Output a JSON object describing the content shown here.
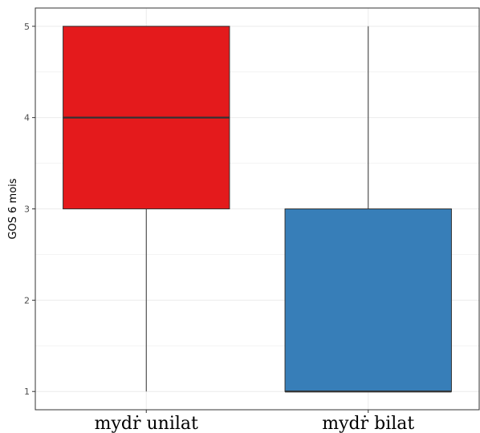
{
  "chart_data": {
    "type": "box",
    "ylabel": "GOS 6 mois",
    "xlabel": "",
    "ylim": [
      0.8,
      5.2
    ],
    "yticks": [
      1,
      2,
      3,
      4,
      5
    ],
    "grid": true,
    "categories": [
      "mydṙ unilat",
      "mydṙ bilat"
    ],
    "boxes": [
      {
        "category": "mydṙ unilat",
        "min": 1,
        "q1": 3,
        "median": 4,
        "q3": 5,
        "max": 5,
        "color": "#E41A1C"
      },
      {
        "category": "mydṙ bilat",
        "min": 1,
        "q1": 1,
        "median": 1,
        "q3": 3,
        "max": 5,
        "color": "#377EB8"
      }
    ]
  }
}
